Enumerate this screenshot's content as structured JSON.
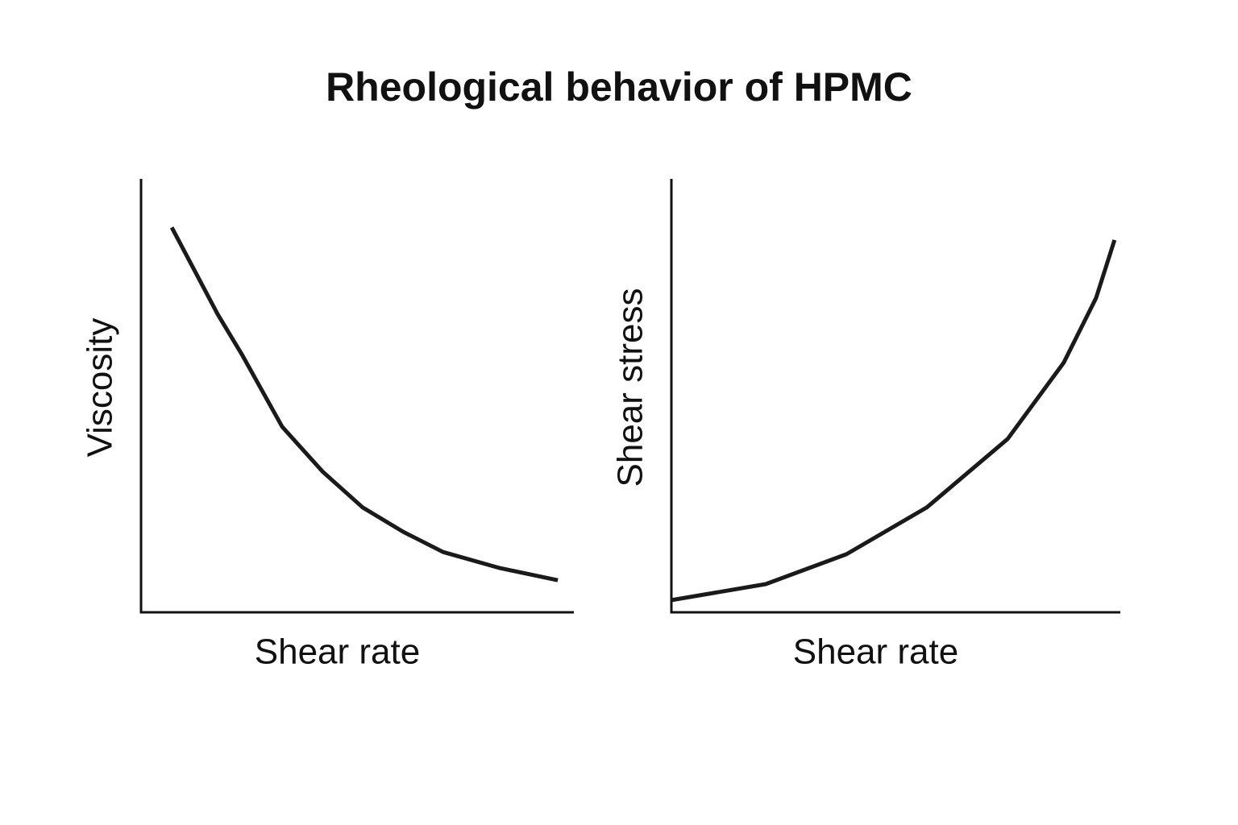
{
  "title": "Rheological behavior of HPMC",
  "chart_data": [
    {
      "type": "line",
      "x_label": "Shear rate",
      "y_label": "Viscosity",
      "color": "#1a1a1a",
      "xlim": [
        0,
        10
      ],
      "ylim": [
        0,
        10
      ],
      "x": [
        0.71,
        1.77,
        2.33,
        3.26,
        4.19,
        5.12,
        6.05,
        6.98,
        8.29,
        9.63
      ],
      "values": [
        8.88,
        6.88,
        5.95,
        4.28,
        3.25,
        2.42,
        1.86,
        1.39,
        1.02,
        0.74
      ]
    },
    {
      "type": "line",
      "x_label": "Shear rate",
      "y_label": "Shear stress",
      "color": "#1a1a1a",
      "xlim": [
        0,
        10
      ],
      "ylim": [
        0,
        10
      ],
      "x": [
        0,
        2.1,
        3.9,
        5.69,
        7.49,
        8.74,
        9.46,
        9.87
      ],
      "values": [
        0.28,
        0.65,
        1.34,
        2.42,
        4.0,
        5.76,
        7.25,
        8.59
      ]
    }
  ]
}
